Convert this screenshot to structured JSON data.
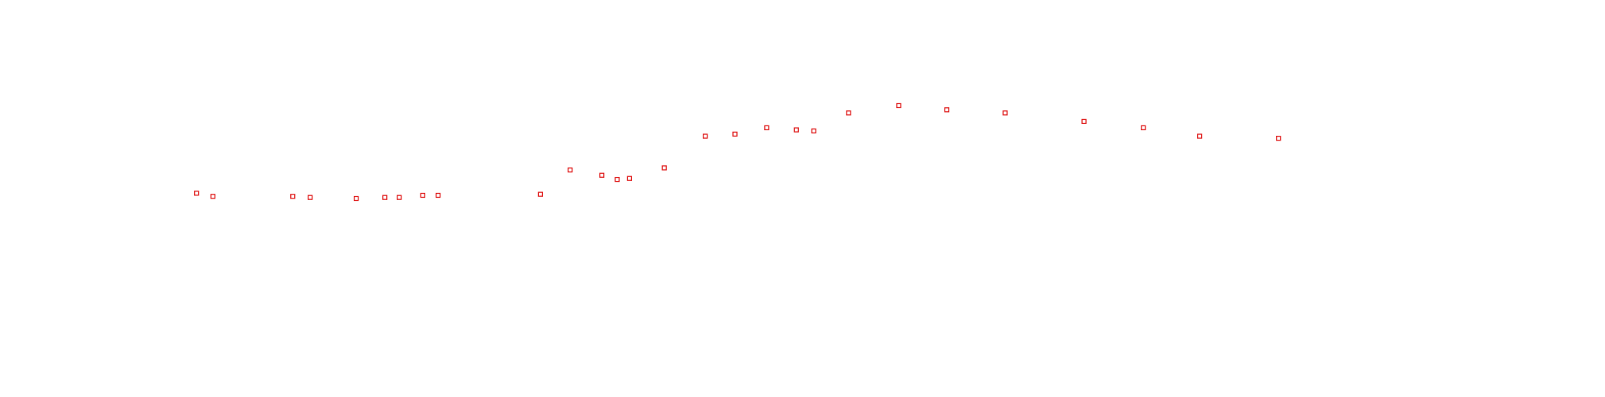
{
  "chart_data": {
    "type": "scatter",
    "color": "#e02020",
    "x": [
      192,
      208,
      286,
      303,
      348,
      376,
      390,
      413,
      428,
      528,
      557,
      588,
      603,
      615,
      649,
      689,
      718,
      749,
      778,
      795,
      829,
      878,
      925,
      982,
      1059,
      1117,
      1172,
      1249
    ],
    "values": [
      193,
      190,
      190,
      189,
      188,
      189,
      189,
      191,
      191,
      192,
      215,
      210,
      206,
      207,
      217,
      247,
      249,
      255,
      253,
      252,
      269,
      276,
      272,
      269,
      261,
      255,
      247,
      245
    ],
    "xlim": [
      0,
      1568
    ],
    "ylim": [
      0,
      376
    ]
  }
}
